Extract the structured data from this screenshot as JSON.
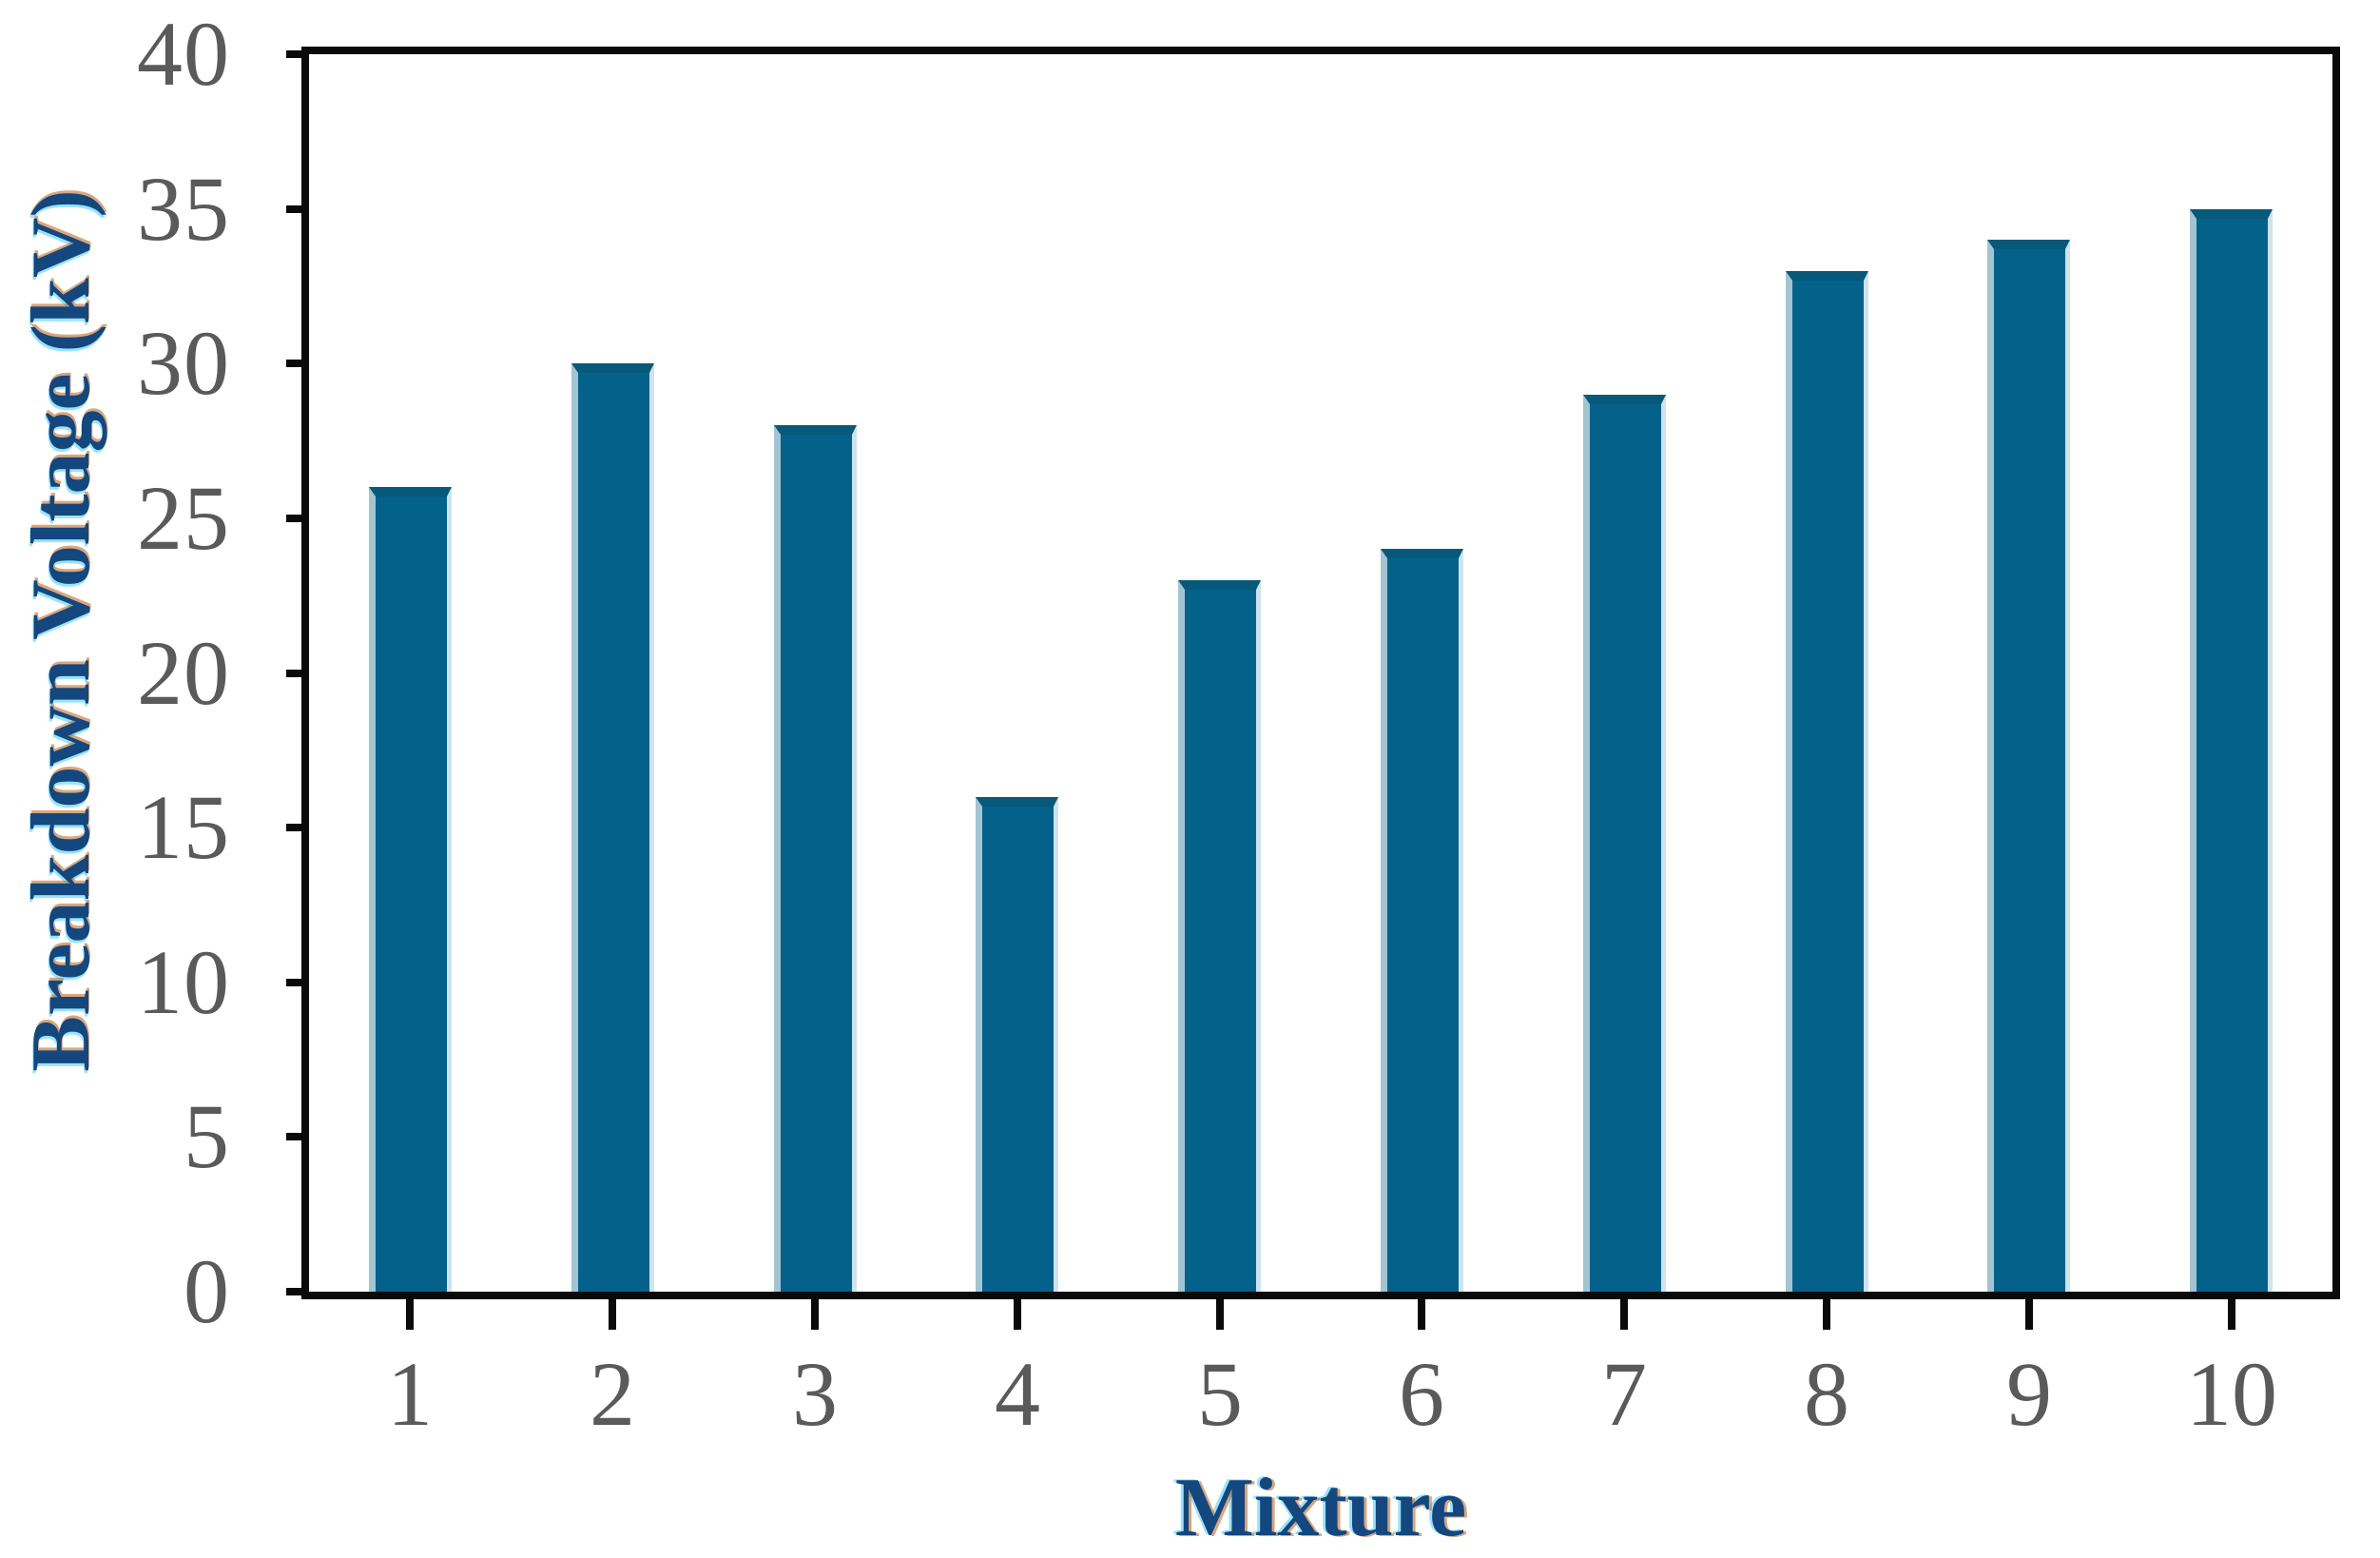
{
  "chart_data": {
    "type": "bar",
    "title": "",
    "xlabel": "Mixture",
    "ylabel": "Breakdown Voltage (kV)",
    "categories": [
      "1",
      "2",
      "3",
      "4",
      "5",
      "6",
      "7",
      "8",
      "9",
      "10"
    ],
    "values": [
      26,
      30,
      28,
      16,
      23,
      24,
      29,
      33,
      34,
      35
    ],
    "ylim": [
      0,
      40
    ],
    "yticks": [
      0,
      5,
      10,
      15,
      20,
      25,
      30,
      35,
      40
    ],
    "grid": false,
    "legend": null,
    "bar_width_fraction": 0.41,
    "colors": {
      "background": "#ffffff",
      "bar_fill": "#03618a",
      "bar_edge_top": "#07597a",
      "bar_edge_left": "#a3c4d2",
      "bar_edge_right": "#cfe3ea",
      "axis": "#0a0a0a",
      "tick_label": "#5a5a5a",
      "axis_title": "#13477e",
      "fringe_warm": "rgba(187,92,20,0.55)",
      "fringe_cool": "rgba(0,186,255,0.40)"
    }
  }
}
